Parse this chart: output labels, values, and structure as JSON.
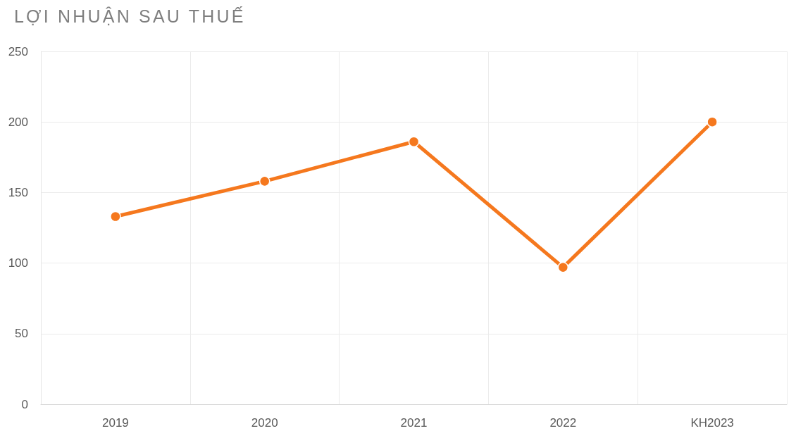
{
  "chart_data": {
    "type": "line",
    "title": "LỢI NHUẬN SAU THUẾ",
    "categories": [
      "2019",
      "2020",
      "2021",
      "2022",
      "KH2023"
    ],
    "values": [
      133,
      158,
      186,
      97,
      200
    ],
    "color": "#f5781e",
    "ylim": [
      0,
      250
    ],
    "yticks": [
      0,
      50,
      100,
      150,
      200,
      250
    ],
    "grid": true,
    "marker": "circle",
    "line_style": "solid"
  }
}
